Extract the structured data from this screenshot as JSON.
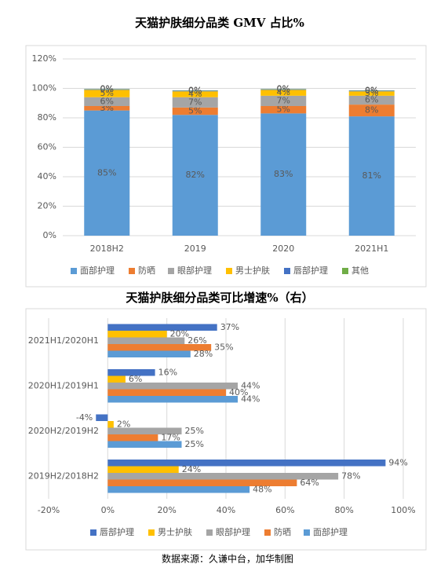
{
  "chart_data": [
    {
      "type": "stacked_bar",
      "title": "天猫护肤细分品类 GMV 占比%",
      "categories": [
        "2018H2",
        "2019",
        "2020",
        "2021H1"
      ],
      "series": [
        {
          "name": "面部护理",
          "color": "#5b9bd5",
          "values": [
            85,
            82,
            83,
            81
          ],
          "value_labels": [
            "85%",
            "82%",
            "83%",
            "81%"
          ]
        },
        {
          "name": "防晒",
          "color": "#ed7d31",
          "values": [
            3,
            5,
            5,
            8
          ],
          "value_labels": [
            "3%",
            "5%",
            "5%",
            "8%"
          ]
        },
        {
          "name": "眼部护理",
          "color": "#a5a5a5",
          "values": [
            6,
            7,
            7,
            6
          ],
          "value_labels": [
            "6%",
            "7%",
            "7%",
            "6%"
          ]
        },
        {
          "name": "男士护肤",
          "color": "#ffc000",
          "values": [
            5,
            4,
            4,
            3
          ],
          "value_labels": [
            "5%",
            "4%",
            "4%",
            "3%"
          ]
        },
        {
          "name": "唇部护理",
          "color": "#4472c4",
          "values": [
            0.4,
            0.4,
            0.4,
            0.4
          ],
          "value_labels": [
            "0%",
            "0%",
            "0%",
            "0%"
          ]
        },
        {
          "name": "其他",
          "color": "#70ad47",
          "values": [
            0.2,
            0.2,
            0.2,
            0.2
          ],
          "value_labels": [
            "0%",
            "0%",
            "0%",
            "0%"
          ]
        }
      ],
      "ylim": [
        0,
        120
      ],
      "yticks": [
        {
          "value": 0,
          "label": "0%"
        },
        {
          "value": 20,
          "label": "20%"
        },
        {
          "value": 40,
          "label": "40%"
        },
        {
          "value": 60,
          "label": "60%"
        },
        {
          "value": 80,
          "label": "80%"
        },
        {
          "value": 100,
          "label": "100%"
        },
        {
          "value": 120,
          "label": "120%"
        }
      ],
      "grid": true,
      "legend": "bottom"
    },
    {
      "type": "horizontal_bar",
      "title": "天猫护肤细分品类可比增速%（右）",
      "categories": [
        "2019H2/2018H2",
        "2020H2/2019H2",
        "2020H1/2019H1",
        "2021H1/2020H1"
      ],
      "series": [
        {
          "name": "唇部护理",
          "color": "#4472c4",
          "values": [
            94,
            -4,
            16,
            37
          ],
          "value_labels": [
            "94%",
            "-4%",
            "16%",
            "37%"
          ]
        },
        {
          "name": "男士护肤",
          "color": "#ffc000",
          "values": [
            24,
            2,
            6,
            20
          ],
          "value_labels": [
            "24%",
            "2%",
            "6%",
            "20%"
          ]
        },
        {
          "name": "眼部护理",
          "color": "#a5a5a5",
          "values": [
            78,
            25,
            44,
            26
          ],
          "value_labels": [
            "78%",
            "25%",
            "44%",
            "26%"
          ]
        },
        {
          "name": "防晒",
          "color": "#ed7d31",
          "values": [
            64,
            17,
            40,
            35
          ],
          "value_labels": [
            "64%",
            "17%",
            "40%",
            "35%"
          ]
        },
        {
          "name": "面部护理",
          "color": "#5b9bd5",
          "values": [
            48,
            25,
            44,
            28
          ],
          "value_labels": [
            "48%",
            "25%",
            "44%",
            "28%"
          ]
        }
      ],
      "xlim": [
        -20,
        100
      ],
      "xticks": [
        {
          "value": -20,
          "label": "-20%"
        },
        {
          "value": 0,
          "label": "0%"
        },
        {
          "value": 20,
          "label": "20%"
        },
        {
          "value": 40,
          "label": "40%"
        },
        {
          "value": 60,
          "label": "60%"
        },
        {
          "value": 80,
          "label": "80%"
        },
        {
          "value": 100,
          "label": "100%"
        }
      ],
      "grid": true,
      "legend": "bottom"
    }
  ],
  "source": "数据来源：久谦中台，加华制图"
}
